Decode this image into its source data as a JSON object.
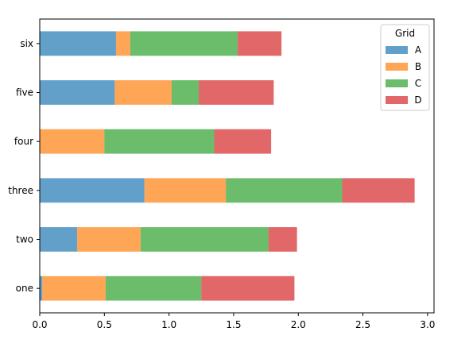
{
  "chart_data": {
    "type": "bar",
    "orientation": "horizontal",
    "stacked": true,
    "categories": [
      "one",
      "two",
      "three",
      "four",
      "five",
      "six"
    ],
    "series": [
      {
        "name": "A",
        "color": "#1f77b4",
        "values": [
          0.02,
          0.29,
          0.81,
          0.0,
          0.58,
          0.59
        ]
      },
      {
        "name": "B",
        "color": "#ff7f0e",
        "values": [
          0.49,
          0.49,
          0.63,
          0.5,
          0.44,
          0.11
        ]
      },
      {
        "name": "C",
        "color": "#2ca02c",
        "values": [
          0.74,
          0.99,
          0.9,
          0.85,
          0.21,
          0.83
        ]
      },
      {
        "name": "D",
        "color": "#d62728",
        "values": [
          0.72,
          0.22,
          0.56,
          0.44,
          0.58,
          0.34
        ]
      }
    ],
    "xlim": [
      0,
      3.05
    ],
    "xticks": [
      0.0,
      0.5,
      1.0,
      1.5,
      2.0,
      2.5,
      3.0
    ],
    "xtick_labels": [
      "0.0",
      "0.5",
      "1.0",
      "1.5",
      "2.0",
      "2.5",
      "3.0"
    ],
    "alpha": 0.7,
    "legend": {
      "title": "Grid",
      "placement": "top-right"
    },
    "grid": false
  }
}
